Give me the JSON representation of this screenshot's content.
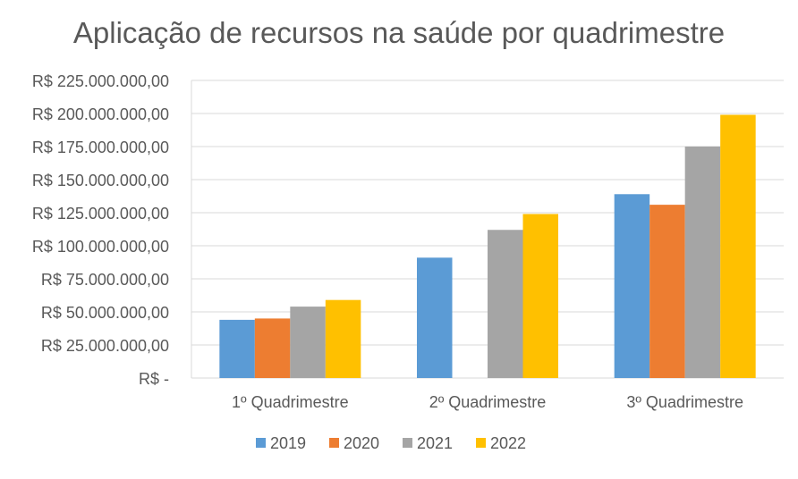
{
  "chart_data": {
    "type": "bar",
    "title": "Aplicação de recursos na saúde por quadrimestre",
    "xlabel": "",
    "ylabel": "",
    "categories": [
      "1º Quadrimestre",
      "2º Quadrimestre",
      "3º Quadrimestre"
    ],
    "series": [
      {
        "name": "2019",
        "color": "#5B9BD5",
        "values": [
          44000000,
          91000000,
          139000000
        ]
      },
      {
        "name": "2020",
        "color": "#ED7D31",
        "values": [
          45000000,
          0,
          131000000
        ]
      },
      {
        "name": "2021",
        "color": "#A5A5A5",
        "values": [
          54000000,
          112000000,
          175000000
        ]
      },
      {
        "name": "2022",
        "color": "#FFC000",
        "values": [
          59000000,
          124000000,
          199000000
        ]
      }
    ],
    "ylim": [
      0,
      225000000
    ],
    "y_ticks": [
      {
        "value": 0,
        "label": "R$ -"
      },
      {
        "value": 25000000,
        "label": "R$ 25.000.000,00"
      },
      {
        "value": 50000000,
        "label": "R$ 50.000.000,00"
      },
      {
        "value": 75000000,
        "label": "R$ 75.000.000,00"
      },
      {
        "value": 100000000,
        "label": "R$ 100.000.000,00"
      },
      {
        "value": 125000000,
        "label": "R$ 125.000.000,00"
      },
      {
        "value": 150000000,
        "label": "R$ 150.000.000,00"
      },
      {
        "value": 175000000,
        "label": "R$ 175.000.000,00"
      },
      {
        "value": 200000000,
        "label": "R$ 200.000.000,00"
      },
      {
        "value": 225000000,
        "label": "R$ 225.000.000,00"
      }
    ],
    "grid": true,
    "legend_position": "bottom"
  }
}
